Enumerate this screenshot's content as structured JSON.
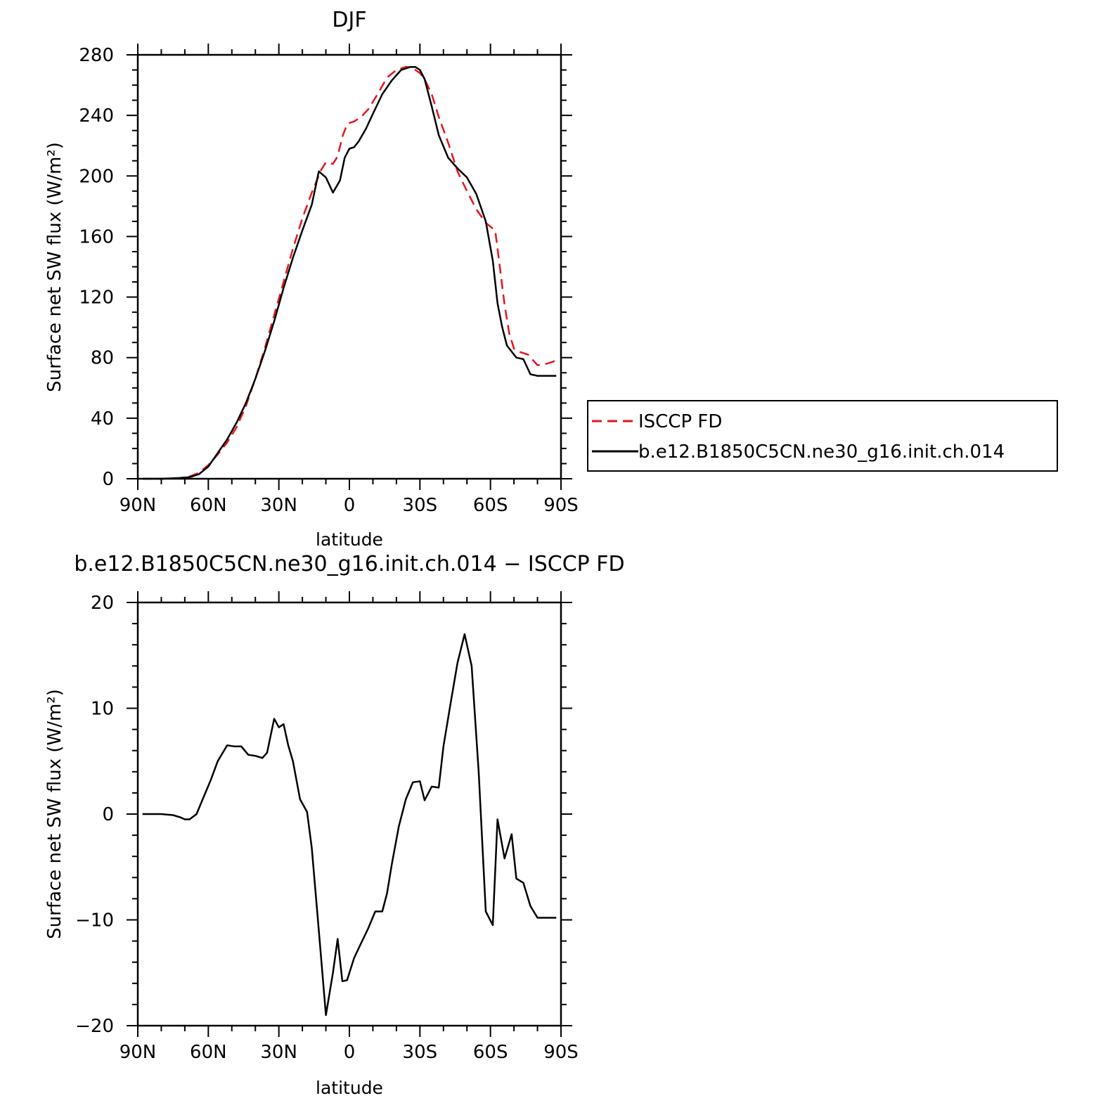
{
  "chart_data": [
    {
      "type": "line",
      "title": "DJF",
      "xlabel": "latitude",
      "ylabel": "Surface net SW flux (W/m²)",
      "xlim": [
        90,
        -90
      ],
      "ylim": [
        0,
        280
      ],
      "yticks": [
        0,
        40,
        80,
        120,
        160,
        200,
        240,
        280
      ],
      "xticks": [
        {
          "value": 90,
          "label": "90N"
        },
        {
          "value": 60,
          "label": "60N"
        },
        {
          "value": 30,
          "label": "30N"
        },
        {
          "value": 0,
          "label": "0"
        },
        {
          "value": -30,
          "label": "30S"
        },
        {
          "value": -60,
          "label": "60S"
        },
        {
          "value": -90,
          "label": "90S"
        }
      ],
      "legend_position": "right",
      "series": [
        {
          "name": "ISCCP FD",
          "color": "#e8141c",
          "dash": "dashed",
          "x": [
            88,
            80,
            72,
            68,
            64,
            60,
            56,
            52,
            48,
            44,
            40,
            36,
            32,
            28,
            24,
            20,
            16,
            12,
            10,
            7,
            5,
            3,
            1,
            0,
            -2,
            -5,
            -8,
            -12,
            -16,
            -20,
            -24,
            -26,
            -28,
            -30,
            -32,
            -35,
            -38,
            -42,
            -46,
            -50,
            -54,
            -58,
            -62,
            -64,
            -66,
            -68,
            -70,
            -72,
            -76,
            -80,
            -84,
            -88
          ],
          "y": [
            0,
            0,
            0.5,
            1.5,
            4,
            9,
            16,
            24,
            34,
            48,
            66,
            86,
            108,
            130,
            152,
            172,
            189,
            204,
            209,
            208,
            213,
            226,
            234,
            235,
            236,
            239,
            244,
            254,
            265,
            270,
            272,
            272,
            270,
            268,
            264,
            254,
            239,
            222,
            203,
            190,
            178,
            169,
            164,
            140,
            115,
            96,
            86,
            84,
            82,
            75,
            76,
            78
          ]
        },
        {
          "name": "b.e12.B1850C5CN.ne30_g16.init.ch.014",
          "color": "#000000",
          "dash": "solid",
          "x": [
            88,
            80,
            72,
            68,
            64,
            60,
            56,
            52,
            48,
            44,
            40,
            36,
            32,
            28,
            24,
            20,
            16,
            13,
            10,
            7,
            4,
            2,
            0,
            -2,
            -4,
            -7,
            -10,
            -14,
            -18,
            -22,
            -26,
            -28,
            -30,
            -32,
            -35,
            -38,
            -42,
            -46,
            -50,
            -54,
            -58,
            -61,
            -63,
            -65,
            -67,
            -69,
            -71,
            -74,
            -77,
            -80,
            -84,
            -88
          ],
          "y": [
            0,
            0,
            0.5,
            1,
            3,
            8,
            17,
            26,
            37,
            50,
            66,
            84,
            104,
            126,
            146,
            164,
            181,
            203,
            199,
            189,
            197,
            212,
            218,
            219,
            223,
            231,
            241,
            254,
            263,
            270,
            272,
            272,
            270,
            264,
            246,
            227,
            212,
            205,
            199,
            188,
            170,
            144,
            116,
            100,
            88,
            84,
            80,
            79,
            69,
            68,
            68,
            68
          ]
        }
      ]
    },
    {
      "type": "line",
      "title": "b.e12.B1850C5CN.ne30_g16.init.ch.014 − ISCCP FD",
      "xlabel": "latitude",
      "ylabel": "Surface net SW flux (W/m²)",
      "xlim": [
        90,
        -90
      ],
      "ylim": [
        -20,
        20
      ],
      "yticks": [
        -20,
        -10,
        0,
        10,
        20
      ],
      "ytick_labels": [
        "−20",
        "−10",
        "0",
        "10",
        "20"
      ],
      "xticks": [
        {
          "value": 90,
          "label": "90N"
        },
        {
          "value": 60,
          "label": "60N"
        },
        {
          "value": 30,
          "label": "30N"
        },
        {
          "value": 0,
          "label": "0"
        },
        {
          "value": -30,
          "label": "30S"
        },
        {
          "value": -60,
          "label": "60S"
        },
        {
          "value": -90,
          "label": "90S"
        }
      ],
      "series": [
        {
          "color": "#000000",
          "dash": "solid",
          "x": [
            88,
            80,
            75,
            72,
            70,
            68,
            65,
            62,
            59,
            56,
            52,
            49,
            46,
            43,
            40,
            37,
            35,
            32,
            30,
            28,
            26,
            24,
            21,
            18,
            16,
            13,
            10,
            7,
            5,
            3,
            1,
            -2,
            -5,
            -8,
            -11,
            -14,
            -16,
            -18,
            -21,
            -24,
            -27,
            -30,
            -32,
            -35,
            -38,
            -40,
            -43,
            -46,
            -49,
            -52,
            -55,
            -58,
            -61,
            -63,
            -66,
            -69,
            -71,
            -74,
            -77,
            -80,
            -82,
            -85,
            -88
          ],
          "y": [
            0,
            0,
            -0.1,
            -0.3,
            -0.5,
            -0.5,
            0,
            1.6,
            3.2,
            5,
            6.5,
            6.4,
            6.4,
            5.6,
            5.5,
            5.3,
            5.8,
            9,
            8.2,
            8.5,
            6.5,
            5,
            1.4,
            0.2,
            -3.2,
            -11,
            -19,
            -15,
            -11.8,
            -15.8,
            -15.7,
            -13.6,
            -12.2,
            -10.8,
            -9.2,
            -9.2,
            -7.5,
            -4.8,
            -1.2,
            1.4,
            3,
            3.1,
            1.3,
            2.6,
            2.5,
            6.4,
            10.4,
            14.3,
            17,
            14,
            4,
            -9.2,
            -10.5,
            -0.5,
            -4.2,
            -1.9,
            -6.1,
            -6.5,
            -8.7,
            -9.8,
            -9.8,
            -9.8,
            -9.8
          ]
        }
      ]
    }
  ]
}
